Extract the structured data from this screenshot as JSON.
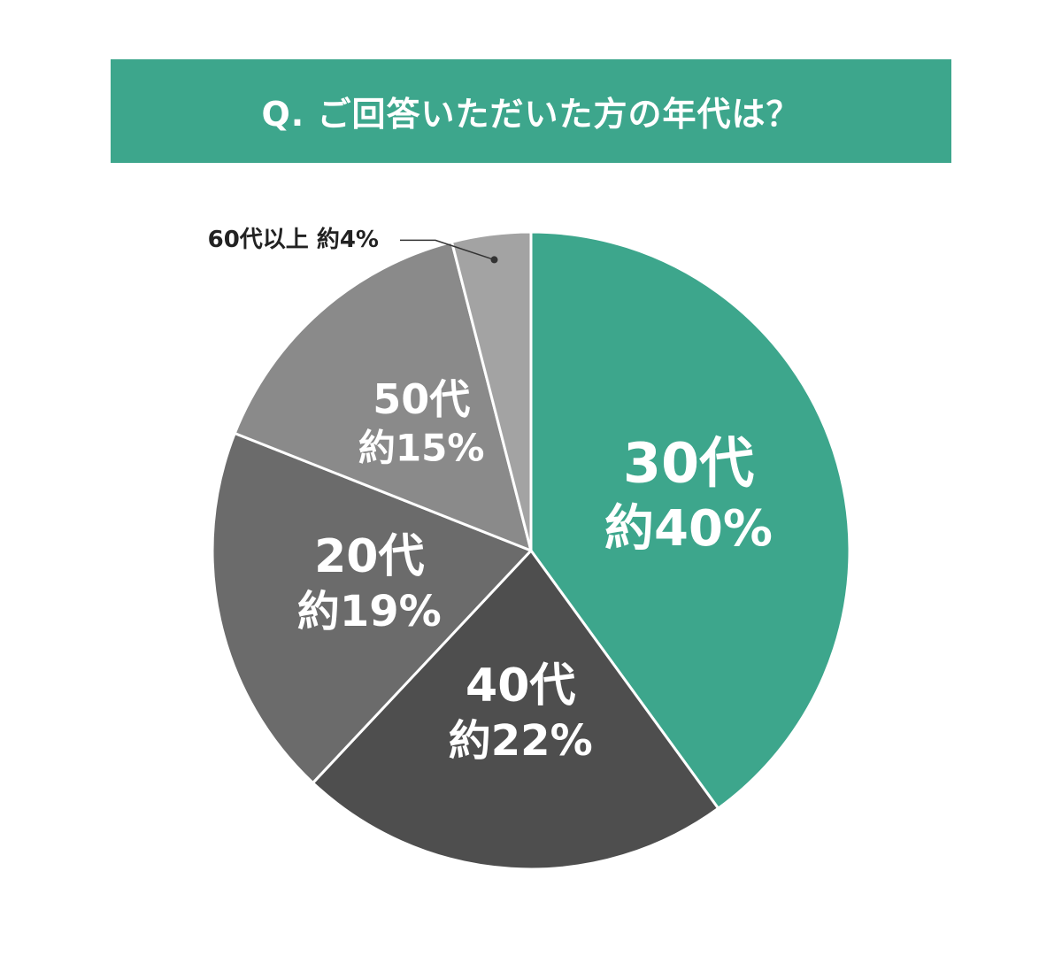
{
  "colors": {
    "banner": "#3da68c",
    "background": "#ffffff",
    "slice_border": "#ffffff",
    "external_label_text": "#222222",
    "leader_line": "#333333"
  },
  "title": "Q. ご回答いただいた方の年代は？",
  "chart_data": {
    "type": "pie",
    "title": "Q. ご回答いただいた方の年代は？",
    "start_angle_deg": 0,
    "direction": "clockwise",
    "slices": [
      {
        "category": "30代",
        "value": 40,
        "pct_label": "約40%",
        "label_placement": "inside",
        "color": "#3da68c",
        "text_color": "#ffffff",
        "size": "large"
      },
      {
        "category": "40代",
        "value": 22,
        "pct_label": "約22%",
        "label_placement": "inside",
        "color": "#4e4e4e",
        "text_color": "#ffffff",
        "size": "medium"
      },
      {
        "category": "20代",
        "value": 19,
        "pct_label": "約19%",
        "label_placement": "inside",
        "color": "#6b6b6b",
        "text_color": "#ffffff",
        "size": "medium"
      },
      {
        "category": "50代",
        "value": 15,
        "pct_label": "約15%",
        "label_placement": "inside",
        "color": "#8a8a8a",
        "text_color": "#ffffff",
        "size": "small"
      },
      {
        "category": "60代以上",
        "value": 4,
        "pct_label": "約4%",
        "label_placement": "outside",
        "color": "#a3a3a3",
        "text_color": "#222222",
        "size": "tiny"
      }
    ]
  }
}
